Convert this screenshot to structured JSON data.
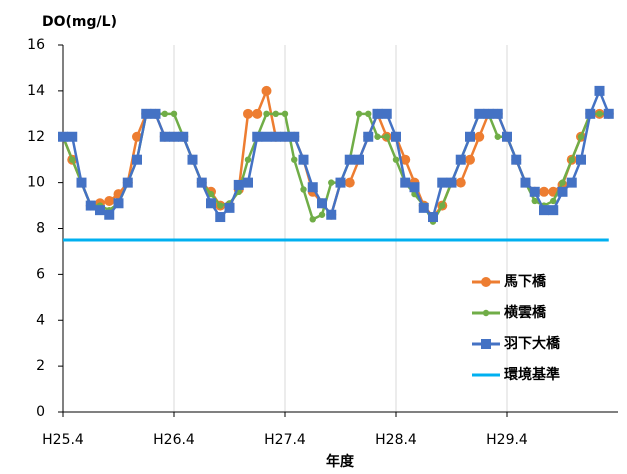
{
  "chart_data": {
    "type": "line",
    "y_label": "DO(mg/L)",
    "x_label": "年度",
    "categories": [
      "H25.4",
      null,
      null,
      null,
      null,
      null,
      null,
      null,
      null,
      null,
      null,
      null,
      "H26.4",
      null,
      null,
      null,
      null,
      null,
      null,
      null,
      null,
      null,
      null,
      null,
      "H27.4",
      null,
      null,
      null,
      null,
      null,
      null,
      null,
      null,
      null,
      null,
      null,
      "H28.4",
      null,
      null,
      null,
      null,
      null,
      null,
      null,
      null,
      null,
      null,
      null,
      "H29.4",
      null,
      null,
      null,
      null,
      null,
      null,
      null,
      null,
      null,
      null,
      null
    ],
    "ylim": [
      0,
      16
    ],
    "yticks": [
      0,
      2,
      4,
      6,
      8,
      10,
      12,
      14,
      16
    ],
    "x_grid": true,
    "series": [
      {
        "name": "馬下橋",
        "color": "#ED7D31",
        "marker": "circle",
        "values": [
          12,
          11,
          10,
          9,
          9.1,
          9.2,
          9.5,
          10,
          12,
          13,
          13,
          12,
          12,
          12,
          11,
          10,
          9.6,
          9,
          9,
          9.7,
          13,
          13,
          14,
          12,
          12,
          12,
          11,
          9.6,
          9.1,
          8.6,
          10,
          10,
          11,
          12,
          13,
          12,
          12,
          11,
          10,
          9,
          8.5,
          9,
          10,
          10,
          11,
          12,
          13,
          13,
          12,
          11,
          10,
          9.6,
          9.6,
          9.6,
          9.9,
          11,
          12,
          13,
          13,
          13
        ]
      },
      {
        "name": "横雲橋",
        "color": "#70AD47",
        "marker": "dot",
        "values": [
          12,
          11,
          10,
          9,
          9,
          8.8,
          9.1,
          10,
          11,
          13,
          13,
          13,
          13,
          12,
          11,
          10,
          9.5,
          9,
          9.1,
          9.6,
          11,
          12,
          13,
          13,
          13,
          11,
          9.7,
          8.4,
          8.6,
          10,
          10,
          11,
          13,
          13,
          12,
          12,
          11,
          10,
          9.5,
          9,
          8.3,
          9,
          10,
          11,
          12,
          13,
          13,
          12,
          12,
          11,
          10,
          9.2,
          9,
          9.2,
          10,
          11,
          12,
          13,
          13,
          13
        ]
      },
      {
        "name": "羽下大橋",
        "color": "#4472C4",
        "marker": "square",
        "values": [
          12,
          12,
          10,
          9,
          8.8,
          8.6,
          9.1,
          10,
          11,
          13,
          13,
          12,
          12,
          12,
          11,
          10,
          9.1,
          8.5,
          8.9,
          9.9,
          10,
          12,
          12,
          12,
          12,
          12,
          11,
          9.8,
          9.1,
          8.6,
          10,
          11,
          11,
          12,
          13,
          13,
          12,
          10,
          9.8,
          8.9,
          8.5,
          10,
          10,
          11,
          12,
          13,
          13,
          13,
          12,
          11,
          10,
          9.6,
          8.8,
          8.8,
          9.6,
          10,
          11,
          13,
          14,
          13
        ]
      },
      {
        "name": "環境基準",
        "color": "#00B0F0",
        "marker": "none",
        "values": [
          7.5,
          7.5,
          7.5,
          7.5,
          7.5,
          7.5,
          7.5,
          7.5,
          7.5,
          7.5,
          7.5,
          7.5,
          7.5,
          7.5,
          7.5,
          7.5,
          7.5,
          7.5,
          7.5,
          7.5,
          7.5,
          7.5,
          7.5,
          7.5,
          7.5,
          7.5,
          7.5,
          7.5,
          7.5,
          7.5,
          7.5,
          7.5,
          7.5,
          7.5,
          7.5,
          7.5,
          7.5,
          7.5,
          7.5,
          7.5,
          7.5,
          7.5,
          7.5,
          7.5,
          7.5,
          7.5,
          7.5,
          7.5,
          7.5,
          7.5,
          7.5,
          7.5,
          7.5,
          7.5,
          7.5,
          7.5,
          7.5,
          7.5,
          7.5,
          7.5
        ]
      }
    ]
  }
}
